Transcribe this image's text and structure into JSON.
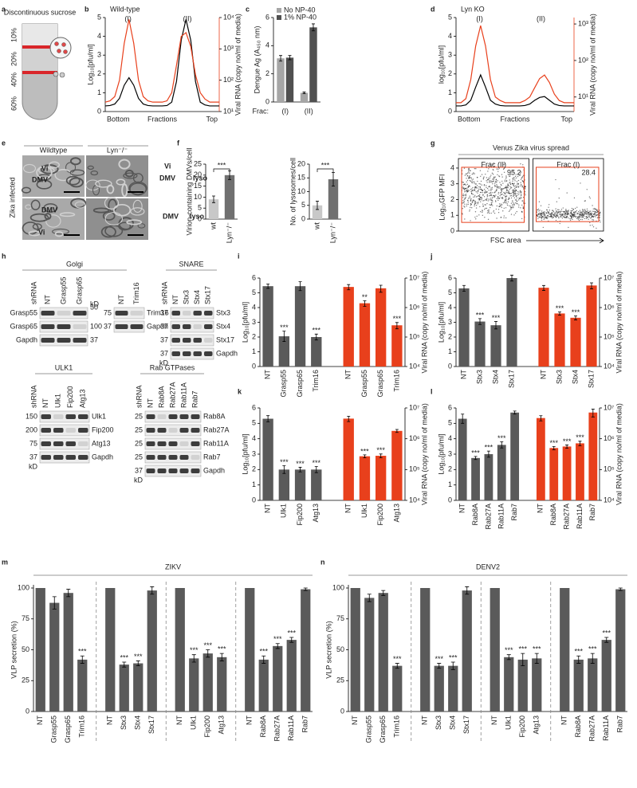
{
  "letters": [
    "a",
    "b",
    "c",
    "d",
    "e",
    "f",
    "g",
    "h",
    "i",
    "j",
    "k",
    "l",
    "m",
    "n"
  ],
  "schematic": {
    "title": "Discontinuous sucrose",
    "layers": [
      "10%",
      "20%",
      "40%",
      "60%"
    ]
  },
  "micrographs": {
    "columns": [
      "Wildtype",
      "Lyn⁻/⁻"
    ],
    "row_label": "Zika infected",
    "annotations": [
      [
        "Vi",
        "DMV"
      ],
      [
        "Vi",
        "DMV",
        "lyso"
      ],
      [
        "DMV",
        "Vi"
      ],
      [
        "DMV",
        "lyso"
      ]
    ]
  },
  "blots": [
    {
      "title": "Golgi",
      "lanes_label": "shRNA",
      "lanes": [
        "NT",
        "Grasp55",
        "Grasp65"
      ],
      "rows": [
        "Grasp55",
        "Grasp65",
        "Gapdh"
      ],
      "markers": [
        "kD",
        "50",
        "100",
        "37"
      ]
    },
    {
      "lanes": [
        "NT",
        "Trim16"
      ],
      "rows": [
        "Trim16",
        "Gapdh"
      ],
      "markers": [
        "75",
        "37"
      ]
    },
    {
      "title": "SNARE",
      "lanes_label": "shRNA",
      "lanes": [
        "NT",
        "Stx3",
        "Stx4",
        "Stx17"
      ],
      "rows": [
        "Stx3",
        "Stx4",
        "Stx17",
        "Gapdh"
      ],
      "markers": [
        "37",
        "37",
        "37",
        "37",
        "kD"
      ]
    },
    {
      "title": "ULK1",
      "lanes_label": "shRNA",
      "lanes": [
        "NT",
        "Ulk1",
        "Fip200",
        "Atg13"
      ],
      "rows": [
        "Ulk1",
        "Fip200",
        "Atg13",
        "Gapdh"
      ],
      "markers": [
        "150",
        "200",
        "75",
        "37",
        "kD"
      ]
    },
    {
      "title": "Rab GTPases",
      "lanes_label": "shRNA",
      "lanes": [
        "NT",
        "Rab8A",
        "Rab27A",
        "Rab11A",
        "Rab7"
      ],
      "rows": [
        "Rab8A",
        "Rab27A",
        "Rab11A",
        "Rab7",
        "Gapdh"
      ],
      "markers": [
        "25",
        "25",
        "25",
        "25",
        "37",
        "kD"
      ]
    }
  ],
  "chart_data": [
    {
      "type": "line",
      "title": "Wild-type",
      "peak_labels": [
        "(I)",
        "(II)"
      ],
      "ylabel": "Log₁₀[pfu/ml]",
      "y2label": "Viral RNA (copy no/ml of media)",
      "xlabels": [
        "Bottom",
        "Fractions",
        "Top"
      ],
      "x": [
        1,
        2,
        3,
        4,
        5,
        6,
        7,
        8,
        9,
        10,
        11,
        12,
        13,
        14,
        15,
        16,
        17,
        18,
        19,
        20,
        21,
        22,
        23,
        24,
        25
      ],
      "xlim": [
        1,
        25
      ],
      "ylim": [
        0,
        5
      ],
      "yticks": [
        0,
        1,
        2,
        3,
        4,
        5
      ],
      "y2lim": [
        10,
        10000
      ],
      "y2log": true,
      "y2ticks": [
        {
          "value": 10,
          "label": "10¹"
        },
        {
          "value": 100,
          "label": "10²"
        },
        {
          "value": 1000,
          "label": "10³"
        },
        {
          "value": 10000,
          "label": "10⁴"
        }
      ],
      "series": [
        {
          "color": "#000000",
          "values": [
            0.3,
            0.32,
            0.4,
            0.7,
            1.4,
            1.8,
            1.4,
            0.7,
            0.4,
            0.32,
            0.3,
            0.3,
            0.3,
            0.32,
            0.5,
            1.6,
            3.8,
            4.9,
            3.8,
            1.6,
            0.5,
            0.35,
            0.3,
            0.3,
            0.3
          ]
        },
        {
          "color": "#e8401c",
          "axis": "y2",
          "values": [
            20,
            22,
            30,
            100,
            1500,
            8700,
            1500,
            100,
            30,
            22,
            20,
            20,
            20,
            22,
            40,
            300,
            2500,
            3300,
            1200,
            150,
            40,
            25,
            20,
            20,
            20
          ]
        }
      ]
    },
    {
      "type": "bar",
      "ylabel": "Dengue Ag (A₄₅₀ nm)",
      "xlabel": "Frac:",
      "categories": [
        "(I)",
        "(II)"
      ],
      "ylim": [
        0,
        6
      ],
      "yticks": [
        0,
        2,
        4,
        6
      ],
      "series": [
        {
          "name": "No NP-40",
          "color": "#a6a6a6",
          "values": [
            3.1,
            0.65
          ],
          "errors": [
            0.2,
            0.06
          ]
        },
        {
          "name": "1% NP-40",
          "color": "#505050",
          "values": [
            3.15,
            5.3
          ],
          "errors": [
            0.15,
            0.25
          ]
        }
      ]
    },
    {
      "type": "line",
      "title": "Lyn KO",
      "peak_labels": [
        "(I)",
        "(II)"
      ],
      "ylabel": "log₁₀[pfu/ml]",
      "y2label": "Viral RNA (copy no/ml of media)",
      "xlabels": [
        "Bottom",
        "Fractions",
        "Top"
      ],
      "x": [
        1,
        2,
        3,
        4,
        5,
        6,
        7,
        8,
        9,
        10,
        11,
        12,
        13,
        14,
        15,
        16,
        17,
        18,
        19,
        20,
        21,
        22,
        23,
        24,
        25
      ],
      "xlim": [
        1,
        25
      ],
      "ylim": [
        0,
        5
      ],
      "yticks": [
        0,
        1,
        2,
        3,
        4,
        5
      ],
      "y2lim": [
        4,
        1500
      ],
      "y2log": true,
      "y2ticks": [
        {
          "value": 10,
          "label": "10¹"
        },
        {
          "value": 100,
          "label": "10²"
        },
        {
          "value": 1000,
          "label": "10³"
        }
      ],
      "series": [
        {
          "color": "#000000",
          "values": [
            0.3,
            0.3,
            0.35,
            0.6,
            1.3,
            1.95,
            1.3,
            0.6,
            0.4,
            0.32,
            0.3,
            0.3,
            0.3,
            0.3,
            0.32,
            0.4,
            0.6,
            0.75,
            0.8,
            0.6,
            0.4,
            0.32,
            0.3,
            0.3,
            0.3
          ]
        },
        {
          "color": "#e8401c",
          "axis": "y2",
          "values": [
            7,
            7,
            9,
            30,
            250,
            900,
            250,
            30,
            10,
            8,
            7,
            7,
            7,
            7,
            8,
            10,
            18,
            32,
            40,
            25,
            12,
            8,
            7,
            7,
            7
          ]
        }
      ]
    },
    {
      "type": "bar",
      "ylabel": "Virion-containing DMVs/cell",
      "categories": [
        "wt",
        "Lyn⁻/⁻"
      ],
      "values": [
        9,
        20
      ],
      "errors": [
        1.5,
        2
      ],
      "colors": [
        "#c8c8c8",
        "#707070"
      ],
      "significance": "***",
      "ylim": [
        0,
        25
      ],
      "yticks": [
        0,
        5,
        10,
        15,
        20,
        25
      ]
    },
    {
      "type": "bar",
      "ylabel": "No. of lysosomes/cell",
      "categories": [
        "wt",
        "Lyn⁻/⁻"
      ],
      "values": [
        5,
        14.5
      ],
      "errors": [
        1.5,
        2.5
      ],
      "colors": [
        "#c8c8c8",
        "#707070"
      ],
      "significance": "***",
      "ylim": [
        0,
        20
      ],
      "yticks": [
        0,
        5,
        10,
        15,
        20
      ]
    },
    {
      "type": "flow",
      "title": "Venus Zika virus spread",
      "ylabel": "Log₁₀GFP MFI",
      "xlabel": "FSC area",
      "ylim": [
        0,
        4.3
      ],
      "yticks": [
        0,
        1,
        2,
        3,
        4
      ],
      "panels": [
        {
          "title": "Frac (II)",
          "gate_percent": 95.2
        },
        {
          "title": "Frac (I)",
          "gate_percent": 28.4
        }
      ]
    },
    {
      "type": "bar",
      "categories": [
        "NT",
        "Grasp55",
        "Grasp65",
        "Trim16"
      ],
      "ylabel": "Log₁₀[pfu/ml]",
      "y2label": "Viral RNA (copy no/ml of media)",
      "ylim": [
        0,
        6
      ],
      "yticks": [
        0,
        1,
        2,
        3,
        4,
        5,
        6
      ],
      "y2lim": [
        10000,
        10000000
      ],
      "y2log": true,
      "y2ticks": [
        {
          "value": 10000,
          "label": "10⁴"
        },
        {
          "value": 100000,
          "label": "10⁵"
        },
        {
          "value": 1000000,
          "label": "10⁶"
        },
        {
          "value": 10000000,
          "label": "10⁷"
        }
      ],
      "series": [
        {
          "color": "#5a5a5a",
          "values": [
            5.45,
            2.05,
            5.45,
            2.0
          ],
          "errors": [
            0.15,
            0.35,
            0.3,
            0.2
          ],
          "stars": [
            null,
            "***",
            null,
            "***"
          ]
        },
        {
          "color": "#e8401c",
          "axis": "y2",
          "values": [
            5000000,
            1400000,
            4500000,
            250000
          ],
          "errors": [
            1000000,
            300000,
            1200000,
            60000
          ],
          "stars": [
            null,
            "**",
            null,
            "***"
          ]
        }
      ]
    },
    {
      "type": "bar",
      "categories": [
        "NT",
        "Stx3",
        "Stx4",
        "Stx17"
      ],
      "ylabel": "Log₁₀[pfu/ml]",
      "y2label": "Viral RNA (copy no/ml of media)",
      "ylim": [
        0,
        6
      ],
      "yticks": [
        0,
        1,
        2,
        3,
        4,
        5,
        6
      ],
      "y2lim": [
        10000,
        10000000
      ],
      "y2log": true,
      "y2ticks": [
        {
          "value": 10000,
          "label": "10⁴"
        },
        {
          "value": 100000,
          "label": "10⁵"
        },
        {
          "value": 1000000,
          "label": "10⁶"
        },
        {
          "value": 10000000,
          "label": "10⁷"
        }
      ],
      "series": [
        {
          "color": "#5a5a5a",
          "values": [
            5.3,
            3.05,
            2.8,
            6.0
          ],
          "errors": [
            0.2,
            0.2,
            0.25,
            0.2
          ],
          "stars": [
            null,
            "***",
            "***",
            null
          ]
        },
        {
          "color": "#e8401c",
          "axis": "y2",
          "values": [
            4700000,
            630000,
            450000,
            5600000
          ],
          "errors": [
            900000,
            80000,
            70000,
            1300000
          ],
          "stars": [
            null,
            "***",
            "***",
            null
          ]
        }
      ]
    },
    {
      "type": "bar",
      "categories": [
        "NT",
        "Ulk1",
        "Fip200",
        "Atg13"
      ],
      "ylabel": "Log₁₀[pfu/ml]",
      "y2label": "Viral RNA (copy no/ml of media)",
      "ylim": [
        0,
        6
      ],
      "yticks": [
        0,
        1,
        2,
        3,
        4,
        5,
        6
      ],
      "y2lim": [
        10000,
        10000000
      ],
      "y2log": true,
      "y2ticks": [
        {
          "value": 10000,
          "label": "10⁴"
        },
        {
          "value": 100000,
          "label": "10⁵"
        },
        {
          "value": 1000000,
          "label": "10⁶"
        },
        {
          "value": 10000000,
          "label": "10⁷"
        }
      ],
      "series": [
        {
          "color": "#5a5a5a",
          "values": [
            5.3,
            2.0,
            2.0,
            2.0
          ],
          "errors": [
            0.2,
            0.25,
            0.15,
            0.2
          ],
          "stars": [
            null,
            "***",
            "***",
            "***"
          ]
        },
        {
          "color": "#e8401c",
          "axis": "y2",
          "values": [
            4500000,
            270000,
            280000,
            1800000
          ],
          "errors": [
            900000,
            30000,
            40000,
            200000
          ],
          "stars": [
            null,
            "***",
            "***",
            null
          ]
        }
      ]
    },
    {
      "type": "bar",
      "categories": [
        "NT",
        "Rab8A",
        "Rab27A",
        "Rab11A",
        "Rab7"
      ],
      "ylabel": "Log₁₀[pfu/ml]",
      "y2label": "Viral RNA (copy no/ml of media)",
      "ylim": [
        0,
        6
      ],
      "yticks": [
        0,
        1,
        2,
        3,
        4,
        5,
        6
      ],
      "y2lim": [
        10000,
        10000000
      ],
      "y2log": true,
      "y2ticks": [
        {
          "value": 10000,
          "label": "10⁴"
        },
        {
          "value": 100000,
          "label": "10⁵"
        },
        {
          "value": 1000000,
          "label": "10⁶"
        },
        {
          "value": 10000000,
          "label": "10⁷"
        }
      ],
      "series": [
        {
          "color": "#5a5a5a",
          "values": [
            5.3,
            2.75,
            3.0,
            3.6,
            5.7
          ],
          "errors": [
            0.3,
            0.1,
            0.2,
            0.2,
            0.1
          ],
          "stars": [
            null,
            "***",
            "***",
            "***",
            null
          ]
        },
        {
          "color": "#e8401c",
          "axis": "y2",
          "values": [
            4700000,
            500000,
            560000,
            710000,
            7100000
          ],
          "errors": [
            900000,
            60000,
            70000,
            120000,
            2000000
          ],
          "stars": [
            null,
            "***",
            "***",
            "***",
            null
          ]
        }
      ]
    },
    {
      "type": "bar",
      "title": "ZIKV",
      "ylabel": "VLP secretion (%)",
      "ylim": [
        0,
        100
      ],
      "yticks": [
        0,
        25,
        50,
        75,
        100
      ],
      "color": "#5a5a5a",
      "groups": [
        {
          "categories": [
            "NT",
            "Grasp55",
            "Grasp65",
            "Trim16"
          ],
          "values": [
            100,
            88,
            96,
            42
          ],
          "errors": [
            null,
            5,
            3,
            3
          ],
          "stars": [
            null,
            null,
            null,
            "***"
          ]
        },
        {
          "categories": [
            "NT",
            "Stx3",
            "Stx4",
            "Stx17"
          ],
          "values": [
            100,
            38,
            39,
            98
          ],
          "errors": [
            null,
            2,
            2,
            3
          ],
          "stars": [
            null,
            "***",
            "***",
            null
          ]
        },
        {
          "categories": [
            "NT",
            "Ulk1",
            "Fip200",
            "Atg13"
          ],
          "values": [
            100,
            43,
            47,
            44
          ],
          "errors": [
            null,
            3,
            3,
            3
          ],
          "stars": [
            null,
            "***",
            "***",
            "***"
          ]
        },
        {
          "categories": [
            "NT",
            "Rab8A",
            "Rab27A",
            "Rab11A",
            "Rab7"
          ],
          "values": [
            100,
            42,
            53,
            58,
            99
          ],
          "errors": [
            null,
            3,
            2,
            2,
            1
          ],
          "stars": [
            null,
            "***",
            "***",
            "***",
            null
          ]
        }
      ]
    },
    {
      "type": "bar",
      "title": "DENV2",
      "ylabel": "VLP secretion (%)",
      "ylim": [
        0,
        100
      ],
      "yticks": [
        0,
        25,
        50,
        75,
        100
      ],
      "color": "#5a5a5a",
      "groups": [
        {
          "categories": [
            "NT",
            "Grasp55",
            "Grasp65",
            "Trim16"
          ],
          "values": [
            100,
            92,
            96,
            37
          ],
          "errors": [
            null,
            3,
            2,
            2
          ],
          "stars": [
            null,
            null,
            null,
            "***"
          ]
        },
        {
          "categories": [
            "NT",
            "Stx3",
            "Stx4",
            "Stx17"
          ],
          "values": [
            100,
            37,
            37,
            98
          ],
          "errors": [
            null,
            2,
            3,
            3
          ],
          "stars": [
            null,
            "***",
            "***",
            null
          ]
        },
        {
          "categories": [
            "NT",
            "Ulk1",
            "Fip200",
            "Atg13"
          ],
          "values": [
            100,
            44,
            42,
            43
          ],
          "errors": [
            null,
            2,
            5,
            4
          ],
          "stars": [
            null,
            "***",
            "***",
            "***"
          ]
        },
        {
          "categories": [
            "NT",
            "Rab8A",
            "Rab27A",
            "Rab11A",
            "Rab7"
          ],
          "values": [
            100,
            42,
            43,
            58,
            99
          ],
          "errors": [
            null,
            3,
            4,
            2,
            1
          ],
          "stars": [
            null,
            "***",
            "***",
            "***",
            null
          ]
        }
      ]
    }
  ]
}
